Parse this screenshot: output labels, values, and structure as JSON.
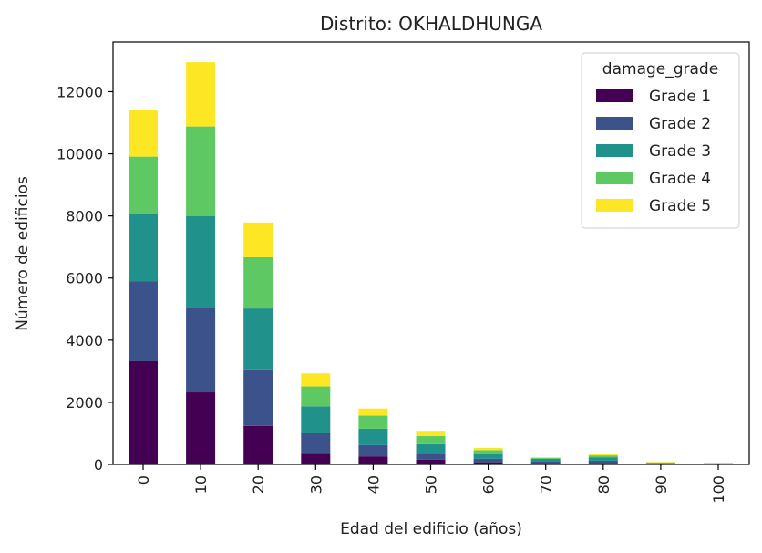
{
  "chart_data": {
    "type": "bar",
    "stacked": true,
    "title": "Distrito: OKHALDHUNGA",
    "xlabel": "Edad del edificio (años)",
    "ylabel": "Número de edificios",
    "categories": [
      "0",
      "10",
      "20",
      "30",
      "40",
      "50",
      "60",
      "70",
      "80",
      "90",
      "100"
    ],
    "ylim": [
      0,
      13600
    ],
    "yticks": [
      0,
      2000,
      4000,
      6000,
      8000,
      10000,
      12000
    ],
    "legend": {
      "title": "damage_grade",
      "position": "top-right"
    },
    "grid": false,
    "series": [
      {
        "name": "Grade 1",
        "color": "#440154",
        "values": [
          3320,
          2320,
          1240,
          370,
          260,
          150,
          70,
          50,
          50,
          15,
          10
        ]
      },
      {
        "name": "Grade 2",
        "color": "#3b528b",
        "values": [
          2570,
          2730,
          1820,
          650,
          360,
          190,
          110,
          60,
          70,
          15,
          10
        ]
      },
      {
        "name": "Grade 3",
        "color": "#21918c",
        "values": [
          2160,
          2950,
          1960,
          850,
          530,
          310,
          170,
          70,
          110,
          20,
          15
        ]
      },
      {
        "name": "Grade 4",
        "color": "#5ec962",
        "values": [
          1860,
          2880,
          1650,
          640,
          420,
          260,
          110,
          30,
          60,
          15,
          10
        ]
      },
      {
        "name": "Grade 5",
        "color": "#fde725",
        "values": [
          1500,
          2070,
          1120,
          420,
          230,
          170,
          70,
          20,
          30,
          15,
          5
        ]
      }
    ]
  }
}
